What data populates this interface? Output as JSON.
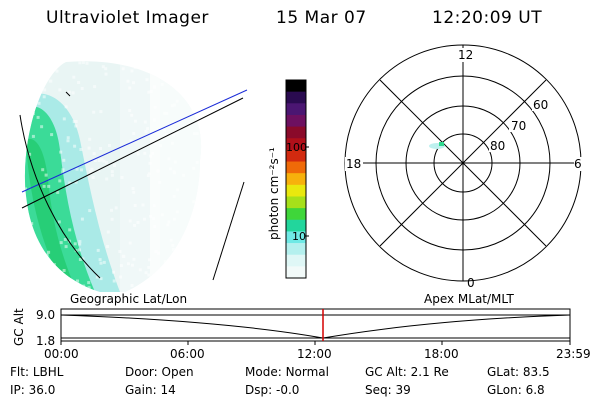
{
  "header": {
    "instrument": "Ultraviolet Imager",
    "date": "15 Mar 07",
    "time": "12:20:09 UT"
  },
  "colorbar": {
    "unit_label": "photon cm⁻²s⁻¹",
    "ticks": [
      "100",
      "10"
    ],
    "colors": [
      "#000000",
      "#2a0b50",
      "#4b1672",
      "#6d1060",
      "#8a0a2a",
      "#b0101a",
      "#d22a0f",
      "#ef6a08",
      "#f7b10c",
      "#e9e80e",
      "#a6e01a",
      "#3fd63a",
      "#22d69c",
      "#6fe9e5",
      "#b4f0ee",
      "#dff7f6",
      "#f2faf9"
    ]
  },
  "polar_plot": {
    "mlt_labels": {
      "top": "12",
      "left": "18",
      "right": "6",
      "bottom": "0"
    },
    "lat_labels": [
      "60",
      "70",
      "80"
    ]
  },
  "timeline": {
    "left_label": "Geographic Lat/Lon",
    "right_label": "Apex MLat/MLT",
    "y_axis_label": "GC Alt",
    "y_ticks": [
      "9.0",
      "1.8"
    ],
    "x_ticks": [
      "00:00",
      "06:00",
      "12:00",
      "18:00",
      "23:59"
    ],
    "marker_color": "#d40000"
  },
  "status": {
    "row1": [
      {
        "label": "Flt:",
        "value": "LBHL"
      },
      {
        "label": "Door:",
        "value": "Open"
      },
      {
        "label": "Mode:",
        "value": "Normal"
      },
      {
        "label": "GC Alt:",
        "value": "2.1 Re"
      },
      {
        "label": "GLat:",
        "value": "83.5"
      }
    ],
    "row2": [
      {
        "label": "IP:",
        "value": "36.0"
      },
      {
        "label": "Gain:",
        "value": "14"
      },
      {
        "label": "Dsp:",
        "value": "-0.0"
      },
      {
        "label": "Seq:",
        "value": "39"
      },
      {
        "label": "GLon:",
        "value": "6.8"
      }
    ]
  }
}
